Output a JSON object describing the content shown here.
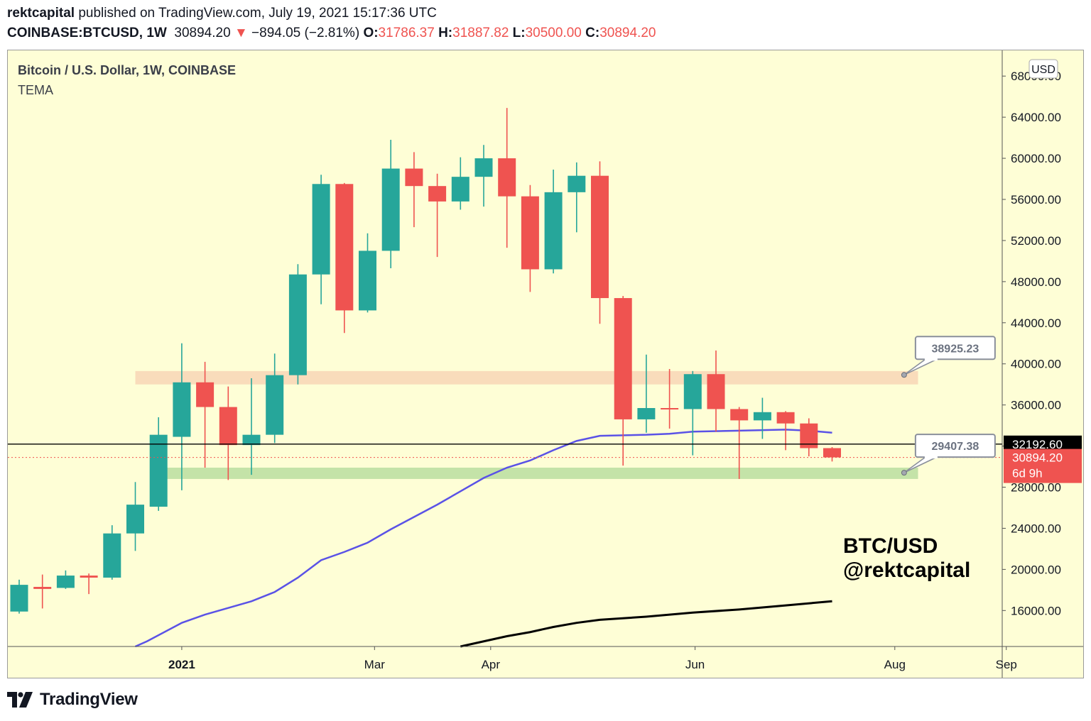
{
  "header": {
    "publisher": "rektcapital",
    "published_text": "published on TradingView.com, July 19, 2021 15:17:36 UTC",
    "symbol": "COINBASE:BTCUSD, 1W",
    "last": "30894.20",
    "down_arrow": "▼",
    "change": "−894.05 (−2.81%)",
    "o_label": "O:",
    "o_value": "31786.37",
    "h_label": "H:",
    "h_value": "31887.82",
    "l_label": "L:",
    "l_value": "30500.00",
    "c_label": "C:",
    "c_value": "30894.20"
  },
  "footer": {
    "brand": "TradingView",
    "logo_icon": "tradingview-logo-icon"
  },
  "chart_data": {
    "type": "candlestick",
    "title": "Bitcoin / U.S. Dollar, 1W, COINBASE",
    "indicator": "TEMA",
    "currency": "USD",
    "watermark": [
      "BTC/USD",
      "@rektcapital"
    ],
    "ylim": [
      12500,
      70500
    ],
    "y_ticks": [
      "16000.00",
      "20000.00",
      "24000.00",
      "28000.00",
      "32000.00",
      "36000.00",
      "40000.00",
      "44000.00",
      "48000.00",
      "52000.00",
      "56000.00",
      "60000.00",
      "64000.00",
      "68000.00"
    ],
    "x_ticks": [
      {
        "label": "2021",
        "week": 7,
        "bold": true
      },
      {
        "label": "Mar",
        "week": 15.3,
        "bold": false
      },
      {
        "label": "Apr",
        "week": 20.3,
        "bold": false
      },
      {
        "label": "Jun",
        "week": 29.1,
        "bold": false
      },
      {
        "label": "Aug",
        "week": 37.7,
        "bold": false
      },
      {
        "label": "Sep",
        "week": 42.5,
        "bold": false
      }
    ],
    "candles": [
      {
        "o": 15900,
        "h": 19000,
        "l": 15700,
        "c": 18500
      },
      {
        "o": 18300,
        "h": 19500,
        "l": 16200,
        "c": 18100
      },
      {
        "o": 18200,
        "h": 19900,
        "l": 18100,
        "c": 19400
      },
      {
        "o": 19400,
        "h": 19600,
        "l": 17600,
        "c": 19200
      },
      {
        "o": 19200,
        "h": 24300,
        "l": 19000,
        "c": 23500
      },
      {
        "o": 23500,
        "h": 28500,
        "l": 21800,
        "c": 26300
      },
      {
        "o": 26100,
        "h": 34800,
        "l": 25700,
        "c": 33100
      },
      {
        "o": 32900,
        "h": 42000,
        "l": 27700,
        "c": 38200
      },
      {
        "o": 38200,
        "h": 40200,
        "l": 29900,
        "c": 35800
      },
      {
        "o": 35800,
        "h": 37800,
        "l": 28700,
        "c": 32100
      },
      {
        "o": 32100,
        "h": 38600,
        "l": 29200,
        "c": 33100
      },
      {
        "o": 33100,
        "h": 41000,
        "l": 32300,
        "c": 38900
      },
      {
        "o": 38900,
        "h": 49700,
        "l": 38000,
        "c": 48700
      },
      {
        "o": 48700,
        "h": 58400,
        "l": 45800,
        "c": 57500
      },
      {
        "o": 57500,
        "h": 57600,
        "l": 43000,
        "c": 45200
      },
      {
        "o": 45200,
        "h": 52700,
        "l": 45000,
        "c": 51000
      },
      {
        "o": 51000,
        "h": 61800,
        "l": 49300,
        "c": 59000
      },
      {
        "o": 59000,
        "h": 60600,
        "l": 53300,
        "c": 57300
      },
      {
        "o": 57300,
        "h": 58500,
        "l": 50400,
        "c": 55800
      },
      {
        "o": 55800,
        "h": 60100,
        "l": 55000,
        "c": 58200
      },
      {
        "o": 58200,
        "h": 61300,
        "l": 55300,
        "c": 60000
      },
      {
        "o": 60000,
        "h": 64900,
        "l": 51300,
        "c": 56300
      },
      {
        "o": 56300,
        "h": 57400,
        "l": 47000,
        "c": 49200
      },
      {
        "o": 49200,
        "h": 58900,
        "l": 48800,
        "c": 56700
      },
      {
        "o": 56700,
        "h": 59600,
        "l": 52800,
        "c": 58300
      },
      {
        "o": 58300,
        "h": 59700,
        "l": 43900,
        "c": 46400
      },
      {
        "o": 46400,
        "h": 46600,
        "l": 30100,
        "c": 34600
      },
      {
        "o": 34600,
        "h": 40900,
        "l": 33300,
        "c": 35700
      },
      {
        "o": 35700,
        "h": 39500,
        "l": 33700,
        "c": 35600
      },
      {
        "o": 35600,
        "h": 39300,
        "l": 31100,
        "c": 39000
      },
      {
        "o": 39000,
        "h": 41300,
        "l": 33400,
        "c": 35600
      },
      {
        "o": 35600,
        "h": 35800,
        "l": 28800,
        "c": 34500
      },
      {
        "o": 34500,
        "h": 36700,
        "l": 32700,
        "c": 35300
      },
      {
        "o": 35300,
        "h": 35400,
        "l": 31600,
        "c": 34200
      },
      {
        "o": 34200,
        "h": 34700,
        "l": 31000,
        "c": 31800
      },
      {
        "o": 31800,
        "h": 31900,
        "l": 30500,
        "c": 30900
      }
    ],
    "tema_line": [
      {
        "week": 5.0,
        "value": 12500
      },
      {
        "week": 5.5,
        "value": 13000
      },
      {
        "week": 7.0,
        "value": 14800
      },
      {
        "week": 8.0,
        "value": 15600
      },
      {
        "week": 10.0,
        "value": 16900
      },
      {
        "week": 11.0,
        "value": 17800
      },
      {
        "week": 12.0,
        "value": 19200
      },
      {
        "week": 13.0,
        "value": 20900
      },
      {
        "week": 14.0,
        "value": 21700
      },
      {
        "week": 15.0,
        "value": 22600
      },
      {
        "week": 16.0,
        "value": 23900
      },
      {
        "week": 17.0,
        "value": 25100
      },
      {
        "week": 18.0,
        "value": 26300
      },
      {
        "week": 19.0,
        "value": 27600
      },
      {
        "week": 20.0,
        "value": 28900
      },
      {
        "week": 21.0,
        "value": 29900
      },
      {
        "week": 22.0,
        "value": 30600
      },
      {
        "week": 23.0,
        "value": 31600
      },
      {
        "week": 24.0,
        "value": 32500
      },
      {
        "week": 25.0,
        "value": 33000
      },
      {
        "week": 27.0,
        "value": 33100
      },
      {
        "week": 28.0,
        "value": 33200
      },
      {
        "week": 29.0,
        "value": 33400
      },
      {
        "week": 31.0,
        "value": 33500
      },
      {
        "week": 33.0,
        "value": 33600
      },
      {
        "week": 34.0,
        "value": 33500
      },
      {
        "week": 35.0,
        "value": 33300
      }
    ],
    "long_ma_line": [
      {
        "week": 19.0,
        "value": 12500
      },
      {
        "week": 20.0,
        "value": 13000
      },
      {
        "week": 21.0,
        "value": 13500
      },
      {
        "week": 22.0,
        "value": 13900
      },
      {
        "week": 23.0,
        "value": 14400
      },
      {
        "week": 24.0,
        "value": 14800
      },
      {
        "week": 25.0,
        "value": 15100
      },
      {
        "week": 27.0,
        "value": 15400
      },
      {
        "week": 29.0,
        "value": 15800
      },
      {
        "week": 31.0,
        "value": 16100
      },
      {
        "week": 33.0,
        "value": 16500
      },
      {
        "week": 35.0,
        "value": 16900
      }
    ],
    "zones": [
      {
        "name": "resistance-zone",
        "from_week": 5.0,
        "to_week": 38.7,
        "low": 38000,
        "high": 39300,
        "color": "#f9dcbb"
      },
      {
        "name": "support-zone",
        "from_week": 6.1,
        "to_week": 38.7,
        "low": 28800,
        "high": 29900,
        "color": "#c4e3a8"
      }
    ],
    "callouts": [
      {
        "label": "38925.23",
        "price": 38925.23,
        "week": 38.1
      },
      {
        "label": "29407.38",
        "price": 29407.38,
        "week": 38.1
      }
    ],
    "horizontal_line": {
      "price": 32192.6,
      "label": "32192.60"
    },
    "last_price": {
      "value": 30894.2,
      "label": "30894.20",
      "countdown": "6d 9h"
    },
    "colors": {
      "up": "#26a69a",
      "down": "#ef5350",
      "background": "#fefed6",
      "tema": "#5a52e6",
      "long_ma": "#000000",
      "axis_text": "#131722"
    }
  }
}
